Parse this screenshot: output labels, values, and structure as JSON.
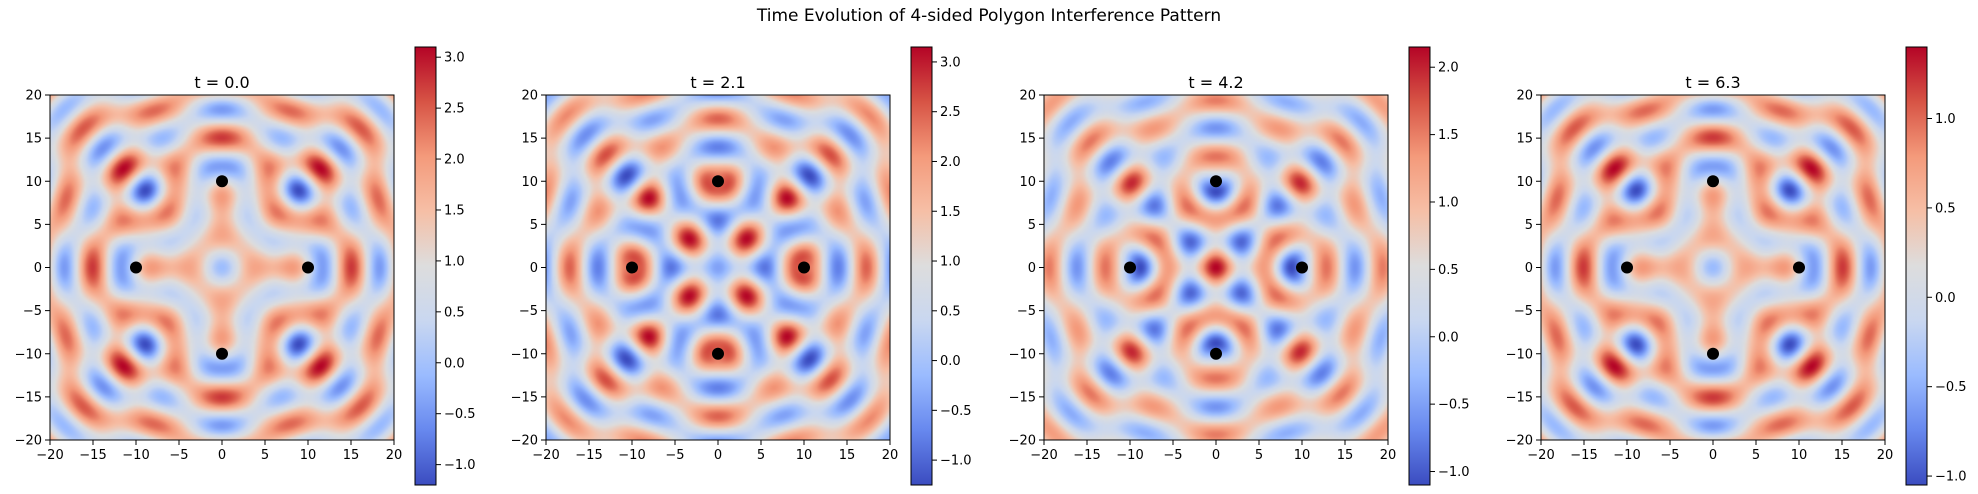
{
  "chart_data": {
    "suptitle": "Time Evolution of 4-sided Polygon Interference Pattern",
    "type": "heatmap",
    "colormap": "coolwarm",
    "colormap_colors": [
      "#3b4cc0",
      "#6788ee",
      "#9abbff",
      "#c9d7f0",
      "#dddddd",
      "#f6bfa6",
      "#f49a7b",
      "#d75445",
      "#b40426"
    ],
    "marker_color": "#000000",
    "sources": [
      {
        "x": 0,
        "y": 10
      },
      {
        "x": -10,
        "y": 0
      },
      {
        "x": 10,
        "y": 0
      },
      {
        "x": 0,
        "y": -10
      }
    ],
    "xlim": [
      -20,
      20
    ],
    "ylim": [
      -20,
      20
    ],
    "xticks": [
      "−20",
      "−15",
      "−10",
      "−5",
      "0",
      "5",
      "10",
      "15",
      "20"
    ],
    "yticks": [
      "20",
      "15",
      "10",
      "5",
      "0",
      "−5",
      "−10",
      "−15",
      "−20"
    ],
    "panels": [
      {
        "title": "t = 0.0",
        "t": 0.0,
        "vmin": -1.2,
        "vmax": 3.1,
        "cbar_ticks": [
          3.0,
          2.5,
          2.0,
          1.5,
          1.0,
          0.5,
          0.0,
          -0.5,
          -1.0
        ],
        "cbar_labels": [
          "3.0",
          "2.5",
          "2.0",
          "1.5",
          "1.0",
          "0.5",
          "0.0",
          "−0.5",
          "−1.0"
        ]
      },
      {
        "title": "t = 2.1",
        "t": 2.1,
        "vmin": -1.25,
        "vmax": 3.15,
        "cbar_ticks": [
          3.0,
          2.5,
          2.0,
          1.5,
          1.0,
          0.5,
          0.0,
          -0.5,
          -1.0
        ],
        "cbar_labels": [
          "3.0",
          "2.5",
          "2.0",
          "1.5",
          "1.0",
          "0.5",
          "0.0",
          "−0.5",
          "−1.0"
        ]
      },
      {
        "title": "t = 4.2",
        "t": 4.2,
        "vmin": -1.1,
        "vmax": 2.15,
        "cbar_ticks": [
          2.0,
          1.5,
          1.0,
          0.5,
          0.0,
          -0.5,
          -1.0
        ],
        "cbar_labels": [
          "2.0",
          "1.5",
          "1.0",
          "0.5",
          "0.0",
          "−0.5",
          "−1.0"
        ]
      },
      {
        "title": "t = 6.3",
        "t": 6.3,
        "vmin": -1.05,
        "vmax": 1.4,
        "cbar_ticks": [
          1.0,
          0.5,
          0.0,
          -0.5,
          -1.0
        ],
        "cbar_labels": [
          "1.0",
          "0.5",
          "0.0",
          "−0.5",
          "−1.0"
        ]
      }
    ]
  }
}
